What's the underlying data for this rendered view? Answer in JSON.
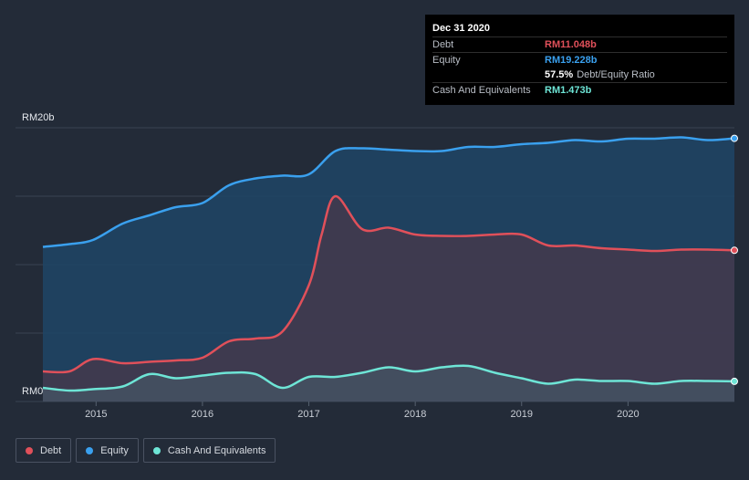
{
  "tooltip": {
    "date": "Dec 31 2020",
    "rows": [
      {
        "label": "Debt",
        "value": "RM11.048b",
        "color": "#e0505a"
      },
      {
        "label": "Equity",
        "value": "RM19.228b",
        "color": "#3aa0ee"
      },
      {
        "ratio_value": "57.5%",
        "ratio_text": "Debt/Equity Ratio"
      },
      {
        "label": "Cash And Equivalents",
        "value": "RM1.473b",
        "color": "#6ee5d6"
      }
    ]
  },
  "legend": [
    {
      "label": "Debt",
      "color": "#e0505a"
    },
    {
      "label": "Equity",
      "color": "#3aa0ee"
    },
    {
      "label": "Cash And Equivalents",
      "color": "#6ee5d6"
    }
  ],
  "colors": {
    "background": "#232b38",
    "debt": "#e0505a",
    "equity": "#3aa0ee",
    "cash": "#6ee5d6",
    "equity_fill": "#1f4566",
    "debt_fill": "#4a3849"
  },
  "chart_data": {
    "type": "area",
    "x_ticks": [
      "2015",
      "2016",
      "2017",
      "2018",
      "2019",
      "2020"
    ],
    "y_tick_labels": [
      "RM0",
      "RM20b"
    ],
    "ylim": [
      0,
      20
    ],
    "xlim": [
      2014.5,
      2021.0
    ],
    "unit": "RM billions",
    "grid": true,
    "series": [
      {
        "name": "Debt",
        "x": [
          2014.5,
          2014.75,
          2014.97,
          2015.25,
          2015.5,
          2015.75,
          2016.0,
          2016.25,
          2016.5,
          2016.75,
          2017.0,
          2017.12,
          2017.25,
          2017.5,
          2017.75,
          2018.0,
          2018.25,
          2018.5,
          2018.75,
          2019.0,
          2019.25,
          2019.5,
          2019.75,
          2020.0,
          2020.25,
          2020.5,
          2020.75,
          2021.0
        ],
        "values": [
          2.2,
          2.2,
          3.1,
          2.8,
          2.9,
          3.0,
          3.2,
          4.4,
          4.6,
          5.1,
          8.5,
          12.2,
          15.0,
          12.6,
          12.7,
          12.2,
          12.1,
          12.1,
          12.2,
          12.2,
          11.4,
          11.4,
          11.2,
          11.1,
          11.0,
          11.1,
          11.1,
          11.048
        ]
      },
      {
        "name": "Equity",
        "x": [
          2014.5,
          2014.75,
          2014.97,
          2015.25,
          2015.5,
          2015.75,
          2016.0,
          2016.25,
          2016.5,
          2016.75,
          2017.0,
          2017.25,
          2017.5,
          2017.75,
          2018.0,
          2018.25,
          2018.5,
          2018.75,
          2019.0,
          2019.25,
          2019.5,
          2019.75,
          2020.0,
          2020.25,
          2020.5,
          2020.75,
          2021.0
        ],
        "values": [
          11.3,
          11.5,
          11.8,
          13.0,
          13.6,
          14.2,
          14.5,
          15.8,
          16.3,
          16.5,
          16.6,
          18.3,
          18.5,
          18.4,
          18.3,
          18.3,
          18.6,
          18.6,
          18.8,
          18.9,
          19.1,
          19.0,
          19.2,
          19.2,
          19.3,
          19.1,
          19.228
        ]
      },
      {
        "name": "Cash And Equivalents",
        "x": [
          2014.5,
          2014.75,
          2014.97,
          2015.25,
          2015.5,
          2015.75,
          2016.0,
          2016.25,
          2016.5,
          2016.75,
          2017.0,
          2017.25,
          2017.5,
          2017.75,
          2018.0,
          2018.25,
          2018.5,
          2018.75,
          2019.0,
          2019.25,
          2019.5,
          2019.75,
          2020.0,
          2020.25,
          2020.5,
          2020.75,
          2021.0
        ],
        "values": [
          1.0,
          0.8,
          0.9,
          1.1,
          2.0,
          1.7,
          1.9,
          2.1,
          2.0,
          1.0,
          1.8,
          1.8,
          2.1,
          2.5,
          2.2,
          2.5,
          2.6,
          2.1,
          1.7,
          1.3,
          1.6,
          1.5,
          1.5,
          1.3,
          1.5,
          1.5,
          1.473
        ]
      }
    ]
  }
}
